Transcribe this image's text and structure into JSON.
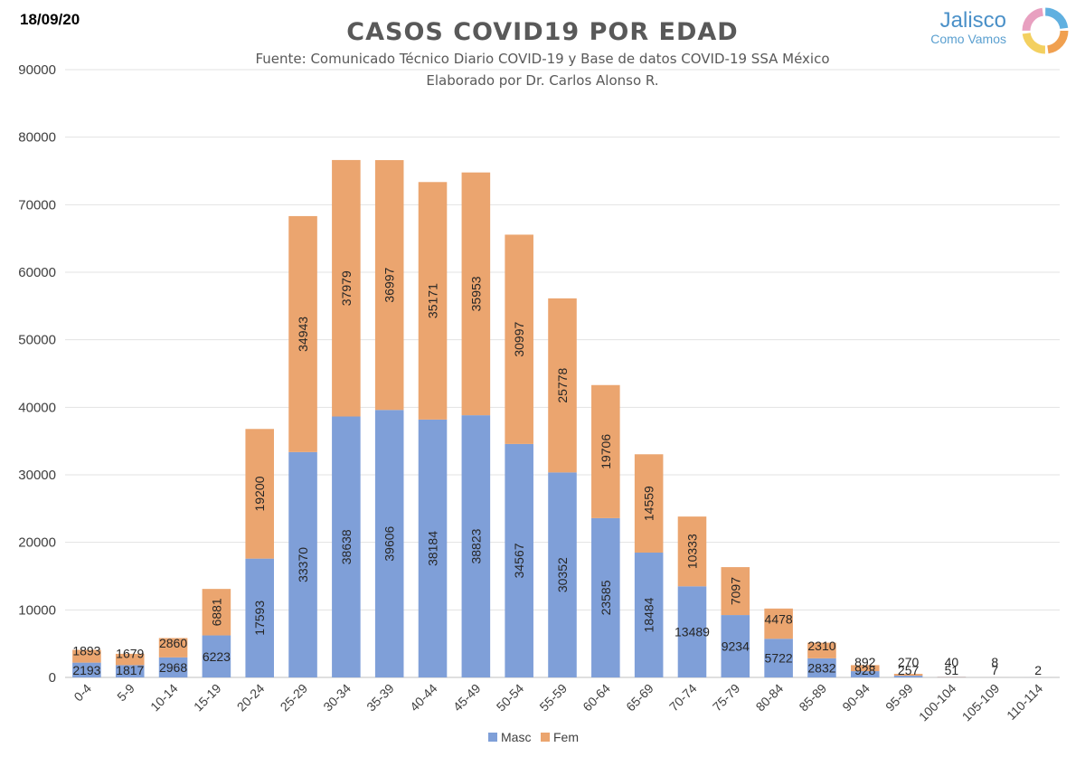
{
  "date": "18/09/20",
  "logo": {
    "name": "Jalisco",
    "subtitle": "Como Vamos"
  },
  "chart_data": {
    "type": "bar",
    "stacked": true,
    "title": "CASOS COVID19 POR EDAD",
    "subtitle": "Fuente: Comunicado Técnico Diario COVID-19 y Base de datos COVID-19 SSA México",
    "subtitle2": "Elaborado por Dr. Carlos Alonso R.",
    "categories": [
      "0-4",
      "5-9",
      "10-14",
      "15-19",
      "20-24",
      "25-29",
      "30-34",
      "35-39",
      "40-44",
      "45-49",
      "50-54",
      "55-59",
      "60-64",
      "65-69",
      "70-74",
      "75-79",
      "80-84",
      "85-89",
      "90-94",
      "95-99",
      "100-104",
      "105-109",
      "110-114"
    ],
    "series": [
      {
        "name": "Masc",
        "color": "#7f9fd8",
        "values": [
          2193,
          1817,
          2968,
          6223,
          17593,
          33370,
          38638,
          39606,
          38184,
          38823,
          34567,
          30352,
          23585,
          18484,
          13489,
          9234,
          5722,
          2832,
          928,
          257,
          51,
          7,
          2
        ]
      },
      {
        "name": "Fem",
        "color": "#eba56f",
        "values": [
          1893,
          1679,
          2860,
          6881,
          19200,
          34943,
          37979,
          36997,
          35171,
          35953,
          30997,
          25778,
          19706,
          14559,
          10333,
          7097,
          4478,
          2310,
          892,
          270,
          40,
          8,
          0
        ]
      }
    ],
    "fem_labels": [
      "1893",
      "1679",
      "2860",
      "6881",
      "19200",
      "34943",
      "37979",
      "36997",
      "35171",
      "35953",
      "30997",
      "25778",
      "19706",
      "14559",
      "10333",
      "7097",
      "4478",
      "2310",
      "892",
      "270",
      "40",
      "8",
      ""
    ],
    "ylim": [
      0,
      90000
    ],
    "yticks": [
      0,
      10000,
      20000,
      30000,
      40000,
      50000,
      60000,
      70000,
      80000,
      90000
    ],
    "grid": true,
    "legend": "bottom"
  }
}
